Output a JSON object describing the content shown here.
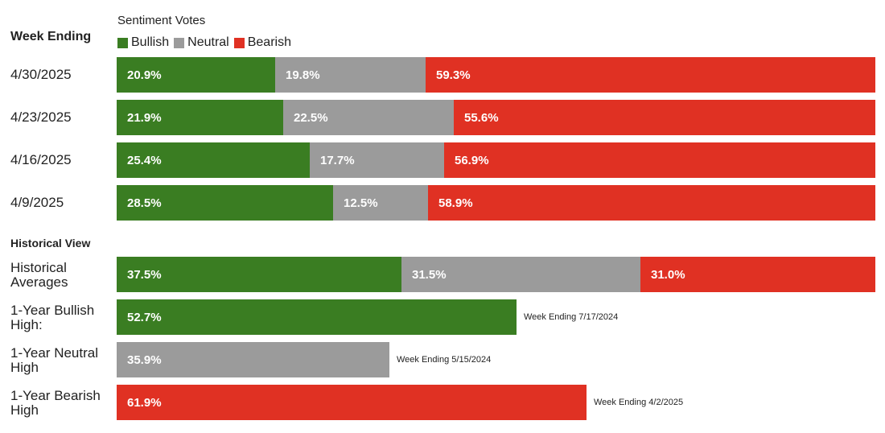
{
  "legend_title": "Sentiment Votes",
  "week_header": "Week Ending",
  "historical_header": "Historical View",
  "colors": {
    "bullish": "#3a7d22",
    "neutral": "#9b9b9b",
    "bearish": "#e03123"
  },
  "chart_data": {
    "type": "bar",
    "stacked": true,
    "orientation": "horizontal",
    "series_names": [
      "Bullish",
      "Neutral",
      "Bearish"
    ],
    "weekly": [
      {
        "label": "4/30/2025",
        "values": [
          20.9,
          19.8,
          59.3
        ],
        "texts": [
          "20.9%",
          "19.8%",
          "59.3%"
        ]
      },
      {
        "label": "4/23/2025",
        "values": [
          21.9,
          22.5,
          55.6
        ],
        "texts": [
          "21.9%",
          "22.5%",
          "55.6%"
        ]
      },
      {
        "label": "4/16/2025",
        "values": [
          25.4,
          17.7,
          56.9
        ],
        "texts": [
          "25.4%",
          "17.7%",
          "56.9%"
        ]
      },
      {
        "label": "4/9/2025",
        "values": [
          28.5,
          12.5,
          58.9
        ],
        "texts": [
          "28.5%",
          "12.5%",
          "58.9%"
        ]
      }
    ],
    "historical": [
      {
        "label": "Historical\nAverages",
        "segments": [
          {
            "series": "bullish",
            "value": 37.5,
            "text": "37.5%"
          },
          {
            "series": "neutral",
            "value": 31.5,
            "text": "31.5%"
          },
          {
            "series": "bearish",
            "value": 31.0,
            "text": "31.0%"
          }
        ],
        "note": ""
      },
      {
        "label": "1-Year Bullish\nHigh:",
        "segments": [
          {
            "series": "bullish",
            "value": 52.7,
            "text": "52.7%"
          }
        ],
        "note": "Week Ending 7/17/2024"
      },
      {
        "label": "1-Year Neutral\nHigh",
        "segments": [
          {
            "series": "neutral",
            "value": 35.9,
            "text": "35.9%"
          }
        ],
        "note": "Week Ending 5/15/2024"
      },
      {
        "label": "1-Year Bearish\nHigh",
        "segments": [
          {
            "series": "bearish",
            "value": 61.9,
            "text": "61.9%"
          }
        ],
        "note": "Week Ending 4/2/2025"
      }
    ],
    "xlim": [
      0,
      100
    ]
  }
}
